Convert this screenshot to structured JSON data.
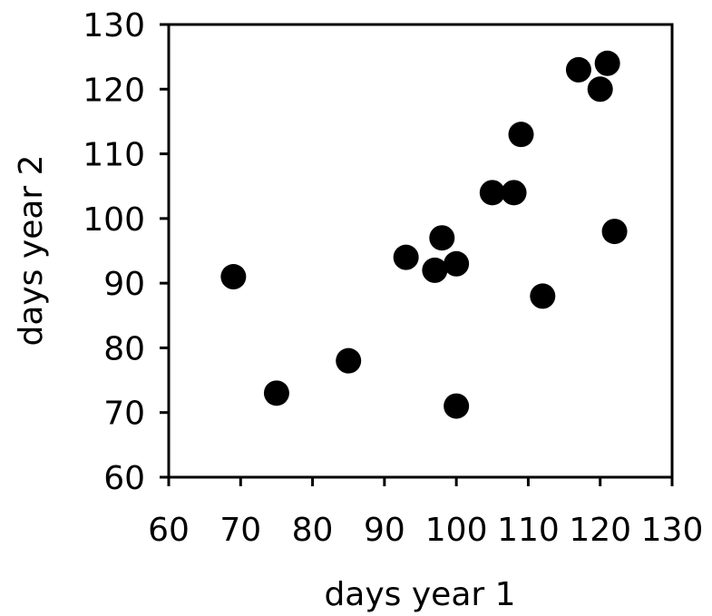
{
  "chart_data": {
    "type": "scatter",
    "xlabel": "days year 1",
    "ylabel": "days year 2",
    "xlim": [
      60,
      130
    ],
    "ylim": [
      60,
      130
    ],
    "xticks": [
      60,
      70,
      80,
      90,
      100,
      110,
      120,
      130
    ],
    "yticks": [
      60,
      70,
      80,
      90,
      100,
      110,
      120,
      130
    ],
    "grid": false,
    "marker_color": "#000000",
    "points": [
      {
        "x": 69,
        "y": 91
      },
      {
        "x": 75,
        "y": 73
      },
      {
        "x": 85,
        "y": 78
      },
      {
        "x": 93,
        "y": 94
      },
      {
        "x": 97,
        "y": 92
      },
      {
        "x": 98,
        "y": 97
      },
      {
        "x": 100,
        "y": 93
      },
      {
        "x": 100,
        "y": 71
      },
      {
        "x": 105,
        "y": 104
      },
      {
        "x": 108,
        "y": 104
      },
      {
        "x": 109,
        "y": 113
      },
      {
        "x": 112,
        "y": 88
      },
      {
        "x": 117,
        "y": 123
      },
      {
        "x": 120,
        "y": 120
      },
      {
        "x": 121,
        "y": 124
      },
      {
        "x": 122,
        "y": 98
      }
    ]
  }
}
